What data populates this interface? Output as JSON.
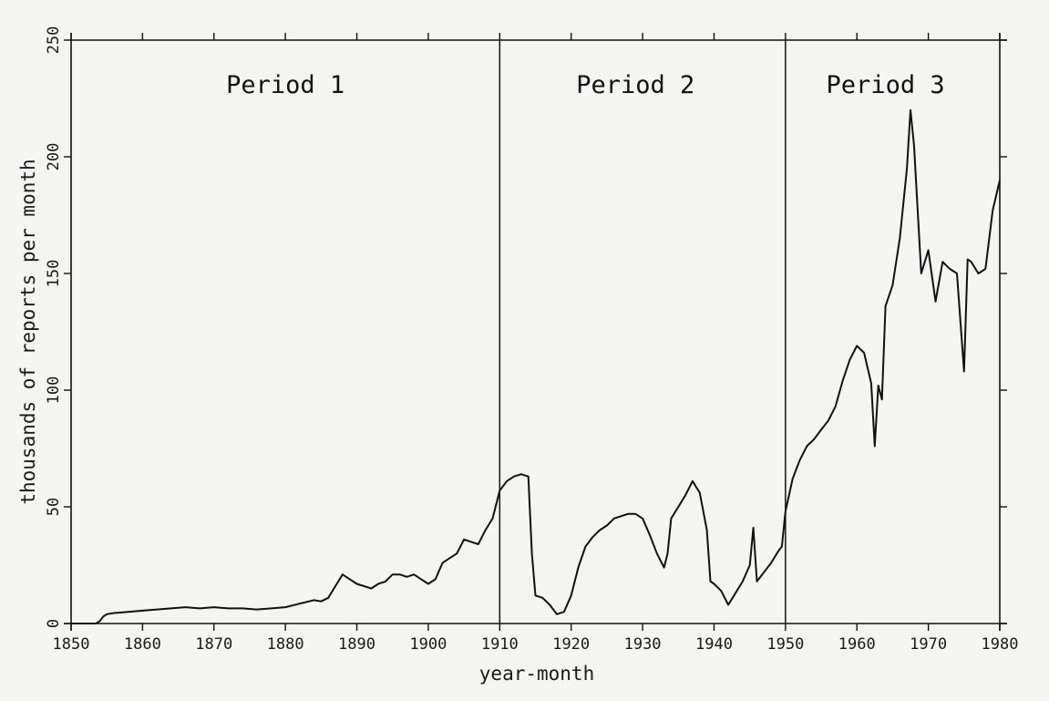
{
  "chart_data": {
    "type": "line",
    "title": "",
    "xlabel": "year-month",
    "ylabel": "thousands of reports per month",
    "xlim": [
      1850,
      1980
    ],
    "ylim": [
      0,
      250
    ],
    "x_ticks": [
      1850,
      1860,
      1870,
      1880,
      1890,
      1900,
      1910,
      1920,
      1930,
      1940,
      1950,
      1960,
      1970,
      1980
    ],
    "y_ticks": [
      0,
      50,
      100,
      150,
      200,
      250
    ],
    "grid": false,
    "legend": null,
    "dividers": [
      1910,
      1950
    ],
    "annotations": [
      {
        "text": "Period 1",
        "x": 1880
      },
      {
        "text": "Period 2",
        "x": 1929
      },
      {
        "text": "Period 3",
        "x": 1964
      }
    ],
    "series": [
      {
        "points": [
          [
            1850,
            0
          ],
          [
            1853.5,
            0
          ],
          [
            1854,
            1
          ],
          [
            1854.5,
            3
          ],
          [
            1855,
            4
          ],
          [
            1856,
            4.5
          ],
          [
            1858,
            5
          ],
          [
            1860,
            5.5
          ],
          [
            1862,
            6
          ],
          [
            1864,
            6.5
          ],
          [
            1866,
            7
          ],
          [
            1868,
            6.5
          ],
          [
            1870,
            7
          ],
          [
            1872,
            6.5
          ],
          [
            1874,
            6.5
          ],
          [
            1876,
            6
          ],
          [
            1878,
            6.5
          ],
          [
            1880,
            7
          ],
          [
            1882,
            8.5
          ],
          [
            1884,
            10
          ],
          [
            1885,
            9.5
          ],
          [
            1886,
            11
          ],
          [
            1887,
            16
          ],
          [
            1888,
            21
          ],
          [
            1889,
            19
          ],
          [
            1890,
            17
          ],
          [
            1891,
            16
          ],
          [
            1892,
            15
          ],
          [
            1893,
            17
          ],
          [
            1894,
            18
          ],
          [
            1895,
            21
          ],
          [
            1896,
            21
          ],
          [
            1897,
            20
          ],
          [
            1898,
            21
          ],
          [
            1899,
            19
          ],
          [
            1900,
            17
          ],
          [
            1901,
            19
          ],
          [
            1902,
            26
          ],
          [
            1903,
            28
          ],
          [
            1904,
            30
          ],
          [
            1905,
            36
          ],
          [
            1906,
            35
          ],
          [
            1907,
            34
          ],
          [
            1908,
            40
          ],
          [
            1909,
            45
          ],
          [
            1910,
            57
          ],
          [
            1911,
            61
          ],
          [
            1912,
            63
          ],
          [
            1913,
            64
          ],
          [
            1914,
            63
          ],
          [
            1914.5,
            30
          ],
          [
            1915,
            12
          ],
          [
            1916,
            11
          ],
          [
            1917,
            8
          ],
          [
            1918,
            4
          ],
          [
            1919,
            5
          ],
          [
            1920,
            12
          ],
          [
            1921,
            24
          ],
          [
            1922,
            33
          ],
          [
            1923,
            37
          ],
          [
            1924,
            40
          ],
          [
            1925,
            42
          ],
          [
            1926,
            45
          ],
          [
            1927,
            46
          ],
          [
            1928,
            47
          ],
          [
            1929,
            47
          ],
          [
            1930,
            45
          ],
          [
            1931,
            38
          ],
          [
            1932,
            30
          ],
          [
            1933,
            24
          ],
          [
            1933.5,
            30
          ],
          [
            1934,
            45
          ],
          [
            1935,
            50
          ],
          [
            1936,
            55
          ],
          [
            1937,
            61
          ],
          [
            1938,
            56
          ],
          [
            1939,
            40
          ],
          [
            1939.5,
            18
          ],
          [
            1940,
            17
          ],
          [
            1941,
            14
          ],
          [
            1942,
            8
          ],
          [
            1943,
            13
          ],
          [
            1944,
            18
          ],
          [
            1945,
            25
          ],
          [
            1945.5,
            41
          ],
          [
            1946,
            18
          ],
          [
            1947,
            22
          ],
          [
            1948,
            26
          ],
          [
            1949,
            31
          ],
          [
            1949.5,
            33
          ],
          [
            1950,
            48
          ],
          [
            1951,
            62
          ],
          [
            1952,
            70
          ],
          [
            1953,
            76
          ],
          [
            1954,
            79
          ],
          [
            1955,
            83
          ],
          [
            1956,
            87
          ],
          [
            1957,
            93
          ],
          [
            1958,
            104
          ],
          [
            1959,
            113
          ],
          [
            1960,
            119
          ],
          [
            1961,
            116
          ],
          [
            1962,
            103
          ],
          [
            1962.5,
            76
          ],
          [
            1963,
            102
          ],
          [
            1963.5,
            96
          ],
          [
            1964,
            136
          ],
          [
            1965,
            145
          ],
          [
            1966,
            165
          ],
          [
            1967,
            195
          ],
          [
            1967.5,
            220
          ],
          [
            1968,
            205
          ],
          [
            1969,
            150
          ],
          [
            1970,
            160
          ],
          [
            1971,
            138
          ],
          [
            1972,
            155
          ],
          [
            1973,
            152
          ],
          [
            1974,
            150
          ],
          [
            1975,
            108
          ],
          [
            1975.5,
            156
          ],
          [
            1976,
            155
          ],
          [
            1977,
            150
          ],
          [
            1978,
            152
          ],
          [
            1979,
            177
          ],
          [
            1980,
            190
          ]
        ]
      }
    ]
  }
}
